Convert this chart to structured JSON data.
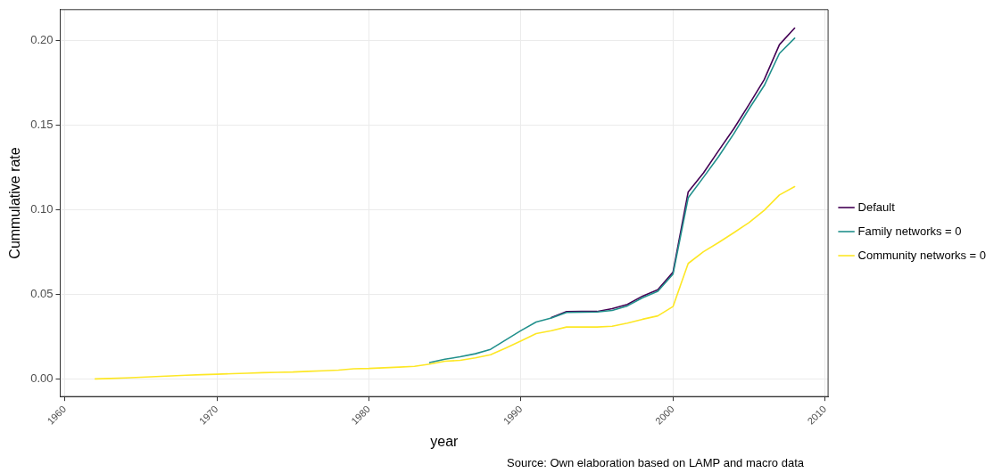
{
  "chart_data": {
    "type": "line",
    "xlabel": "year",
    "ylabel": "Cummulative rate",
    "x": [
      1962,
      1963,
      1964,
      1965,
      1966,
      1967,
      1968,
      1969,
      1970,
      1971,
      1972,
      1973,
      1974,
      1975,
      1976,
      1977,
      1978,
      1979,
      1980,
      1981,
      1982,
      1983,
      1984,
      1985,
      1986,
      1987,
      1988,
      1989,
      1990,
      1991,
      1992,
      1993,
      1994,
      1995,
      1996,
      1997,
      1998,
      1999,
      2000,
      2001,
      2002,
      2003,
      2004,
      2005,
      2006,
      2007,
      2008
    ],
    "series": [
      {
        "name": "Default",
        "color": "#440154",
        "values": [
          null,
          null,
          null,
          null,
          null,
          null,
          null,
          null,
          null,
          null,
          null,
          null,
          null,
          null,
          null,
          null,
          null,
          null,
          null,
          null,
          null,
          null,
          null,
          null,
          null,
          null,
          null,
          null,
          null,
          null,
          0.0363,
          0.0398,
          0.0399,
          0.0399,
          0.0416,
          0.0441,
          0.049,
          0.0528,
          0.0631,
          0.1106,
          0.1218,
          0.135,
          0.148,
          0.1623,
          0.177,
          0.1977,
          0.2075
        ]
      },
      {
        "name": "Family networks = 0",
        "color": "#21908c",
        "values": [
          null,
          null,
          null,
          null,
          null,
          null,
          null,
          null,
          null,
          null,
          null,
          null,
          null,
          null,
          null,
          null,
          null,
          null,
          null,
          null,
          null,
          null,
          0.0097,
          0.0117,
          0.0131,
          0.0149,
          0.0175,
          0.0231,
          0.0286,
          0.0337,
          0.036,
          0.0393,
          0.0395,
          0.0396,
          0.0405,
          0.0432,
          0.048,
          0.0518,
          0.062,
          0.1071,
          0.1192,
          0.1315,
          0.145,
          0.1597,
          0.1735,
          0.1925,
          0.2015
        ]
      },
      {
        "name": "Community networks = 0",
        "color": "#fde725",
        "values": [
          0,
          0.0003,
          0.0006,
          0.001,
          0.0014,
          0.0018,
          0.0022,
          0.0025,
          0.0028,
          0.0031,
          0.0034,
          0.0037,
          0.0039,
          0.0041,
          0.0045,
          0.0048,
          0.0052,
          0.006,
          0.0062,
          0.0066,
          0.007,
          0.0075,
          0.0088,
          0.0105,
          0.011,
          0.0125,
          0.0143,
          0.0183,
          0.0225,
          0.0268,
          0.0285,
          0.0307,
          0.0307,
          0.0307,
          0.0312,
          0.033,
          0.0353,
          0.0373,
          0.0428,
          0.0683,
          0.0752,
          0.0807,
          0.0865,
          0.0925,
          0.0997,
          0.1088,
          0.1137
        ]
      }
    ],
    "xlim": [
      1959.7,
      2010.2
    ],
    "xticks": [
      1960,
      1970,
      1980,
      1990,
      2000,
      2010
    ],
    "ylim": [
      -0.0104,
      0.2184
    ],
    "yticks": [
      {
        "value": 0,
        "label": "0.00"
      },
      {
        "value": 0.05,
        "label": "0.05"
      },
      {
        "value": 0.1,
        "label": "0.10"
      },
      {
        "value": 0.15,
        "label": "0.15"
      },
      {
        "value": 0.2,
        "label": "0.20"
      }
    ],
    "grid": true,
    "legend": "right",
    "marker": "none",
    "line_style": "solid",
    "annotations": [
      "Source: Own elaboration based on LAMP and macro data"
    ]
  }
}
